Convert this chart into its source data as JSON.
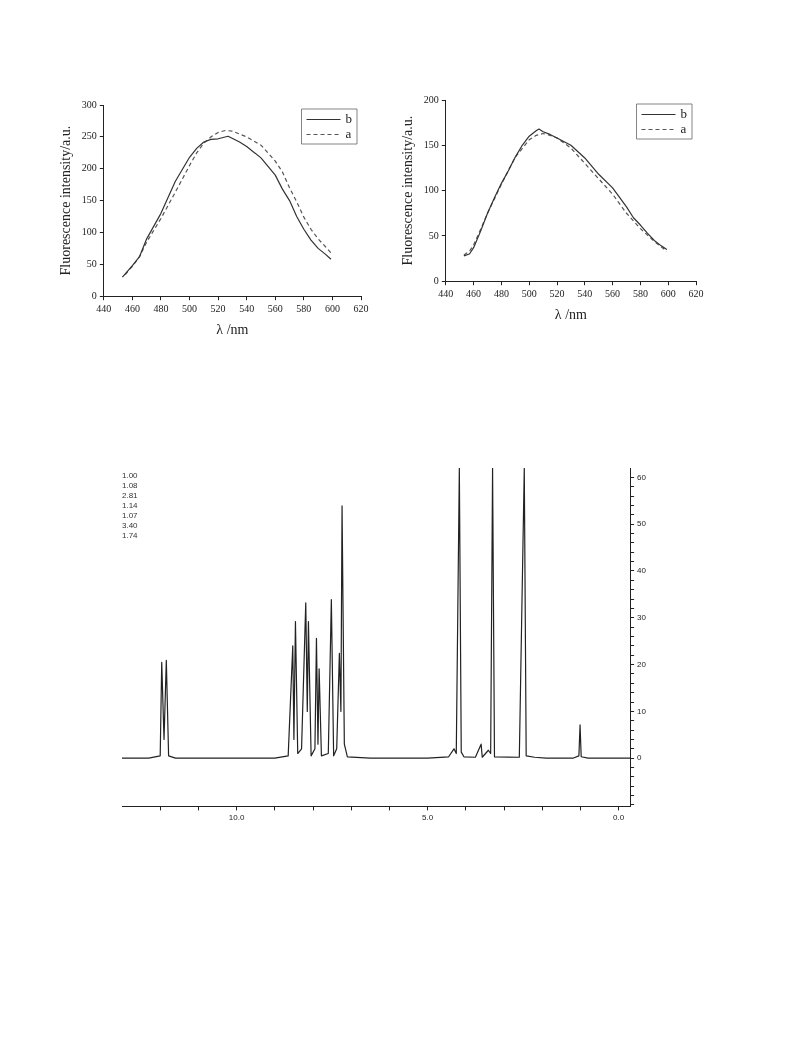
{
  "chart_data": [
    {
      "type": "line",
      "xlabel": "λ /nm",
      "ylabel": "Fluorescence intensity/a.u.",
      "xlim": [
        440,
        620
      ],
      "xticks": [
        440,
        460,
        480,
        500,
        520,
        540,
        560,
        580,
        600,
        620
      ],
      "ylim": [
        0,
        300
      ],
      "yticks": [
        0,
        50,
        100,
        150,
        200,
        250,
        300
      ],
      "legend": "top right",
      "marker": "none",
      "series": [
        {
          "name": "b",
          "color": "#333333",
          "line_style": "solid",
          "x": [
            453,
            460,
            465,
            470,
            480,
            490,
            500,
            505,
            510,
            515,
            520,
            527,
            535,
            540,
            550,
            560,
            565,
            570,
            575,
            580,
            585,
            590,
            595,
            599
          ],
          "values": [
            30,
            48,
            62,
            90,
            130,
            180,
            218,
            232,
            242,
            246,
            247,
            251,
            242,
            235,
            217,
            190,
            168,
            150,
            125,
            105,
            88,
            75,
            66,
            58
          ]
        },
        {
          "name": "a",
          "color": "#555555",
          "line_style": "dashed",
          "x": [
            455,
            460,
            465,
            470,
            480,
            490,
            500,
            505,
            510,
            515,
            520,
            525,
            530,
            540,
            550,
            560,
            565,
            570,
            575,
            580,
            585,
            590,
            595,
            599
          ],
          "values": [
            34,
            47,
            62,
            85,
            122,
            163,
            205,
            225,
            240,
            250,
            257,
            260,
            259,
            250,
            237,
            212,
            195,
            170,
            148,
            124,
            105,
            90,
            78,
            68
          ]
        }
      ]
    },
    {
      "type": "line",
      "xlabel": "λ /nm",
      "ylabel": "Fluorescence intensity/a.u.",
      "xlim": [
        440,
        620
      ],
      "xticks": [
        440,
        460,
        480,
        500,
        520,
        540,
        560,
        580,
        600,
        620
      ],
      "ylim": [
        0,
        200
      ],
      "yticks": [
        0,
        50,
        100,
        150,
        200
      ],
      "legend": "top right",
      "marker": "none",
      "series": [
        {
          "name": "b",
          "color": "#333333",
          "line_style": "solid",
          "x": [
            453,
            457,
            460,
            465,
            470,
            475,
            480,
            485,
            490,
            495,
            500,
            505,
            507,
            510,
            515,
            520,
            530,
            540,
            550,
            560,
            570,
            575,
            580,
            585,
            590,
            595,
            599
          ],
          "values": [
            28,
            30,
            37,
            55,
            75,
            92,
            108,
            122,
            137,
            150,
            160,
            166,
            168,
            165,
            162,
            158,
            150,
            136,
            118,
            103,
            82,
            70,
            62,
            53,
            45,
            39,
            35
          ]
        },
        {
          "name": "a",
          "color": "#555555",
          "line_style": "dashed",
          "x": [
            453,
            457,
            460,
            465,
            470,
            480,
            490,
            500,
            505,
            510,
            515,
            520,
            530,
            540,
            550,
            560,
            570,
            580,
            590,
            599
          ],
          "values": [
            29,
            33,
            40,
            57,
            75,
            107,
            137,
            156,
            161,
            163,
            161,
            158,
            147,
            130,
            113,
            96,
            75,
            58,
            44,
            33
          ]
        }
      ]
    },
    {
      "type": "line",
      "xlim": [
        13.0,
        -0.3
      ],
      "xticks": [
        {
          "value": 12,
          "label": null
        },
        {
          "value": 11,
          "label": null
        },
        {
          "value": 10,
          "label": "10.0"
        },
        {
          "value": 9,
          "label": null
        },
        {
          "value": 8,
          "label": null
        },
        {
          "value": 7,
          "label": null
        },
        {
          "value": 6,
          "label": null
        },
        {
          "value": 5,
          "label": "5.0"
        },
        {
          "value": 4,
          "label": null
        },
        {
          "value": 3,
          "label": null
        },
        {
          "value": 2,
          "label": null
        },
        {
          "value": 1,
          "label": null
        },
        {
          "value": 0,
          "label": "0.0"
        }
      ],
      "y2lim": [
        -10.3,
        62
      ],
      "y2ticks": [
        {
          "value": -10,
          "label": null
        },
        {
          "value": -8,
          "label": null
        },
        {
          "value": -6,
          "label": null
        },
        {
          "value": -4,
          "label": null
        },
        {
          "value": -2,
          "label": null
        },
        0,
        {
          "value": 2,
          "label": null
        },
        {
          "value": 4,
          "label": null
        },
        {
          "value": 6,
          "label": null
        },
        {
          "value": 8,
          "label": null
        },
        10,
        {
          "value": 12,
          "label": null
        },
        {
          "value": 14,
          "label": null
        },
        {
          "value": 16,
          "label": null
        },
        {
          "value": 18,
          "label": null
        },
        20,
        {
          "value": 22,
          "label": null
        },
        {
          "value": 24,
          "label": null
        },
        {
          "value": 26,
          "label": null
        },
        {
          "value": 28,
          "label": null
        },
        30,
        {
          "value": 32,
          "label": null
        },
        {
          "value": 34,
          "label": null
        },
        {
          "value": 36,
          "label": null
        },
        {
          "value": 38,
          "label": null
        },
        40,
        {
          "value": 42,
          "label": null
        },
        {
          "value": 44,
          "label": null
        },
        {
          "value": 46,
          "label": null
        },
        {
          "value": 48,
          "label": null
        },
        50,
        {
          "value": 52,
          "label": null
        },
        {
          "value": 54,
          "label": null
        },
        {
          "value": 56,
          "label": null
        },
        {
          "value": 58,
          "label": null
        },
        60
      ],
      "marker": "none",
      "series": [
        {
          "color": "#222222",
          "axis": "y2",
          "line_style": "solid",
          "x": [
            13.0,
            12.3,
            12.0,
            11.96,
            11.9,
            11.84,
            11.78,
            11.6,
            10.5,
            9.0,
            8.65,
            8.53,
            8.5,
            8.46,
            8.4,
            8.3,
            8.19,
            8.15,
            8.12,
            8.05,
            7.95,
            7.91,
            7.87,
            7.84,
            7.78,
            7.6,
            7.52,
            7.46,
            7.38,
            7.31,
            7.27,
            7.24,
            7.18,
            7.1,
            6.5,
            5.0,
            4.45,
            4.31,
            4.25,
            4.17,
            4.12,
            4.05,
            3.75,
            3.6,
            3.57,
            3.41,
            3.35,
            3.3,
            3.25,
            2.6,
            2.47,
            2.42,
            2.2,
            1.9,
            1.2,
            1.04,
            1.01,
            0.98,
            0.8,
            -0.3
          ],
          "values": [
            0,
            0,
            0.5,
            20.5,
            4,
            20.9,
            0.5,
            0,
            0,
            0,
            0.5,
            24,
            4,
            29.2,
            1,
            2,
            33.2,
            10,
            29.2,
            0.5,
            2,
            25.6,
            3,
            19.1,
            0.5,
            1,
            33.9,
            0.5,
            2,
            22.4,
            10,
            53.9,
            3,
            0.3,
            0,
            0,
            0.3,
            2,
            1,
            62,
            1.3,
            0.3,
            0.2,
            3,
            0.2,
            1.7,
            1,
            62,
            0.3,
            0.2,
            62,
            0.5,
            0.2,
            0,
            0,
            0.5,
            7.1,
            0.3,
            0,
            0
          ]
        }
      ],
      "annotations": [
        "1.00",
        "1.08",
        "2.81",
        "1.14",
        "1.07",
        "3.40",
        "1.74"
      ]
    }
  ]
}
